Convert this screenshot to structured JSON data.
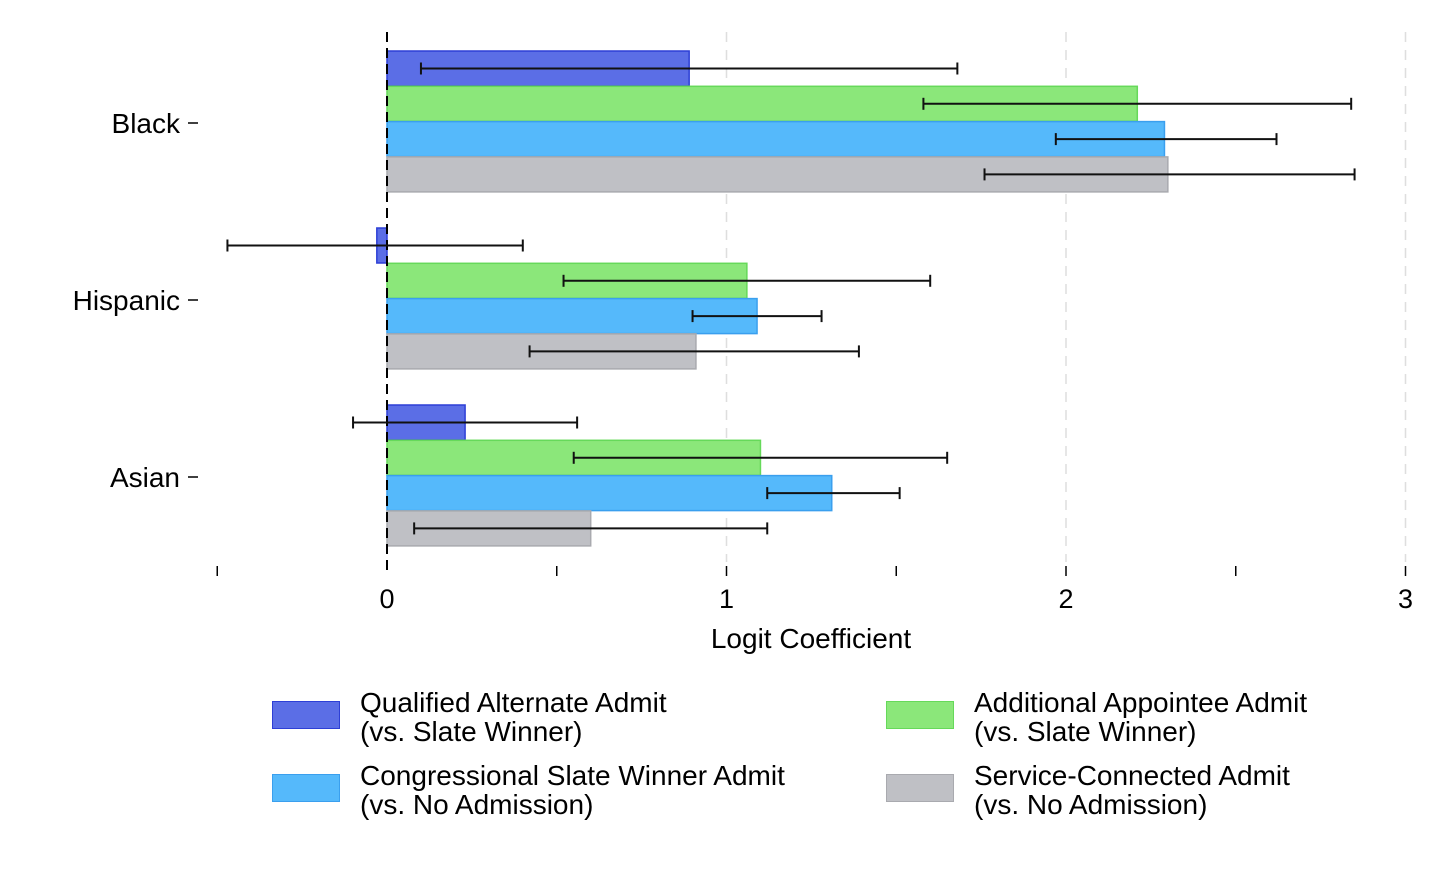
{
  "chart_data": {
    "type": "bar",
    "orientation": "horizontal",
    "categories": [
      "Black",
      "Hispanic",
      "Asian"
    ],
    "xlabel": "Logit Coefficient",
    "xlim": [
      -0.5,
      3
    ],
    "xticks": [
      0,
      1,
      2,
      3
    ],
    "xticks_minor": [
      -0.5,
      0.5,
      1.5,
      2.5
    ],
    "reference_line": 0,
    "grid": "vertical dashed at major ticks",
    "legend_position": "bottom",
    "series": [
      {
        "name": "Qualified Alternate Admit\n(vs. Slate Winner)",
        "name_lines": [
          "Qualified Alternate Admit",
          "(vs. Slate Winner)"
        ],
        "color": "#5B6EE6",
        "border": "#2D3FD6",
        "values": [
          0.89,
          -0.03,
          0.23
        ],
        "ci_low": [
          0.1,
          -0.47,
          -0.1
        ],
        "ci_high": [
          1.68,
          0.4,
          0.56
        ]
      },
      {
        "name": "Additional Appointee Admit\n(vs. Slate Winner)",
        "name_lines": [
          "Additional Appointee Admit",
          "(vs. Slate Winner)"
        ],
        "color": "#8BE77A",
        "border": "#66D95A",
        "values": [
          2.21,
          1.06,
          1.1
        ],
        "ci_low": [
          1.58,
          0.52,
          0.55
        ],
        "ci_high": [
          2.84,
          1.6,
          1.65
        ]
      },
      {
        "name": "Congressional Slate Winner Admit\n(vs. No Admission)",
        "name_lines": [
          "Congressional Slate Winner Admit",
          "(vs. No Admission)"
        ],
        "color": "#55B9FB",
        "border": "#3A9FEE",
        "values": [
          2.29,
          1.09,
          1.31
        ],
        "ci_low": [
          1.97,
          0.9,
          1.12
        ],
        "ci_high": [
          2.62,
          1.28,
          1.51
        ]
      },
      {
        "name": "Service-Connected Admit\n(vs. No Admission)",
        "name_lines": [
          "Service-Connected Admit",
          "(vs. No Admission)"
        ],
        "color": "#BFC0C5",
        "border": "#A9AAAF",
        "values": [
          2.3,
          0.91,
          0.6
        ],
        "ci_low": [
          1.76,
          0.42,
          0.08
        ],
        "ci_high": [
          2.85,
          1.39,
          1.12
        ]
      }
    ]
  }
}
